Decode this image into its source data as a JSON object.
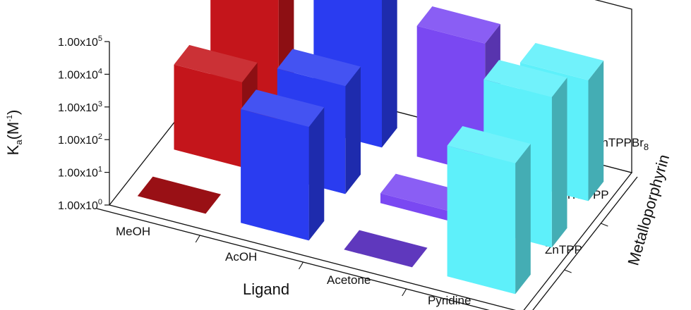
{
  "chart_data": {
    "type": "bar",
    "style": "3d",
    "ylabel": {
      "main": "K",
      "sub": "a",
      "mid": "(M",
      "sup": "-1",
      "end": ")"
    },
    "xlabel": "Ligand",
    "zlabel": "Metalloporphyrin",
    "y_scale": "log",
    "ylim": [
      1,
      100000
    ],
    "y_ticks": [
      {
        "value": 1,
        "mant": "1.00x10",
        "exp": "0"
      },
      {
        "value": 10,
        "mant": "1.00x10",
        "exp": "1"
      },
      {
        "value": 100,
        "mant": "1.00x10",
        "exp": "2"
      },
      {
        "value": 1000,
        "mant": "1.00x10",
        "exp": "3"
      },
      {
        "value": 10000,
        "mant": "1.00x10",
        "exp": "4"
      },
      {
        "value": 100000,
        "mant": "1.00x10",
        "exp": "5"
      }
    ],
    "categories": [
      "MeOH",
      "AcOH",
      "Acetone",
      "Pyridine"
    ],
    "series_labels": [
      {
        "text": "ZnTPP"
      },
      {
        "text": "ZnTPFPP"
      },
      {
        "main": "ZnTPPBr",
        "sub": "8"
      }
    ],
    "colors": {
      "MeOH": "#c4151b",
      "AcOH": "#2a3cf0",
      "Acetone": "#7a48f2",
      "Pyridine": "#5ef0fa"
    },
    "series": [
      {
        "values": [
          1,
          3000,
          1,
          10000
        ]
      },
      {
        "values": [
          400,
          2000,
          2,
          40000
        ]
      },
      {
        "values": [
          40000,
          60000,
          10000,
          5000
        ]
      }
    ]
  }
}
